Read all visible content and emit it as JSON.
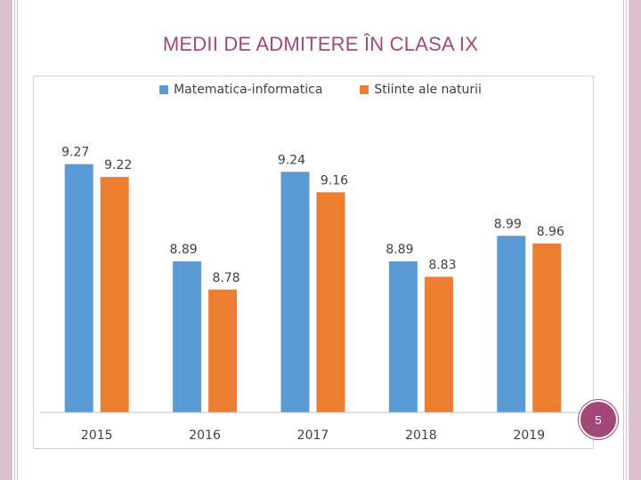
{
  "slide": {
    "title": "MEDII DE ADMITERE ÎN CLASA  IX",
    "page_number": "5",
    "accent_color": "#a3477a"
  },
  "chart_data": {
    "type": "bar",
    "title": "MEDII DE ADMITERE ÎN CLASA  IX",
    "categories": [
      "2015",
      "2016",
      "2017",
      "2018",
      "2019"
    ],
    "series": [
      {
        "name": "Matematica-informatica",
        "color": "#5b9bd5",
        "values": [
          9.27,
          8.89,
          9.24,
          8.89,
          8.99
        ]
      },
      {
        "name": "Stiinte ale naturii",
        "color": "#ed7d31",
        "values": [
          9.22,
          8.78,
          9.16,
          8.83,
          8.96
        ]
      }
    ],
    "value_labels": [
      [
        "9.27",
        "8.89",
        "9.24",
        "8.89",
        "8.99"
      ],
      [
        "9.22",
        "8.78",
        "9.16",
        "8.83",
        "8.96"
      ]
    ],
    "xlabel": "",
    "ylabel": "",
    "ylim": [
      8.3,
      9.3
    ],
    "legend_position": "top-center",
    "grid": false
  }
}
